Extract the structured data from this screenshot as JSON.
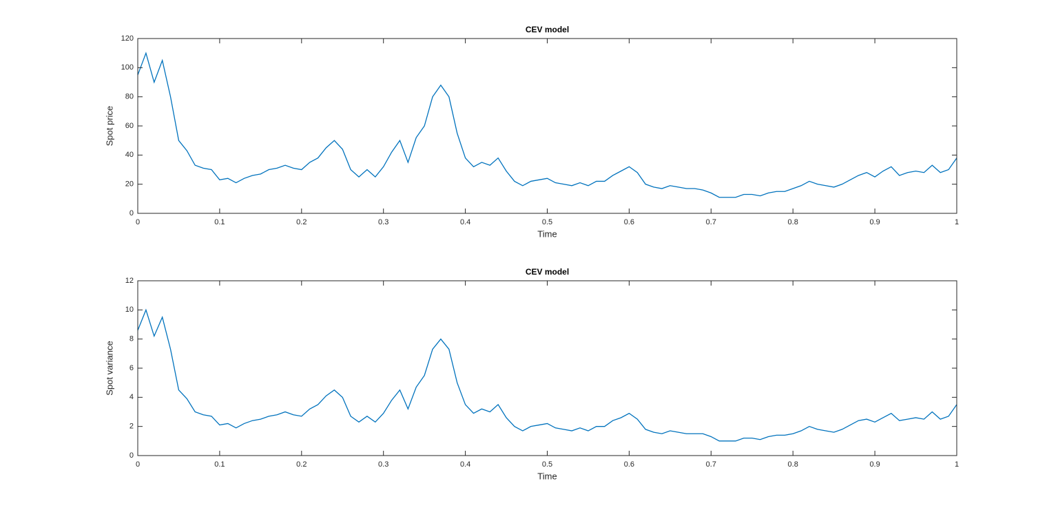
{
  "chart_data": [
    {
      "type": "line",
      "title": "CEV model",
      "xlabel": "Time",
      "ylabel": "Spot price",
      "color": "#0072bd",
      "x": [
        0,
        0.01,
        0.02,
        0.03,
        0.04,
        0.05,
        0.06,
        0.07,
        0.08,
        0.09,
        0.1,
        0.11,
        0.12,
        0.13,
        0.14,
        0.15,
        0.16,
        0.17,
        0.18,
        0.19,
        0.2,
        0.21,
        0.22,
        0.23,
        0.24,
        0.25,
        0.26,
        0.27,
        0.28,
        0.29,
        0.3,
        0.31,
        0.32,
        0.33,
        0.34,
        0.35,
        0.36,
        0.37,
        0.38,
        0.39,
        0.4,
        0.41,
        0.42,
        0.43,
        0.44,
        0.45,
        0.46,
        0.47,
        0.48,
        0.49,
        0.5,
        0.51,
        0.52,
        0.53,
        0.54,
        0.55,
        0.56,
        0.57,
        0.58,
        0.59,
        0.6,
        0.61,
        0.62,
        0.63,
        0.64,
        0.65,
        0.66,
        0.67,
        0.68,
        0.69,
        0.7,
        0.71,
        0.72,
        0.73,
        0.74,
        0.75,
        0.76,
        0.77,
        0.78,
        0.79,
        0.8,
        0.81,
        0.82,
        0.83,
        0.84,
        0.85,
        0.86,
        0.87,
        0.88,
        0.89,
        0.9,
        0.91,
        0.92,
        0.93,
        0.94,
        0.95,
        0.96,
        0.97,
        0.98,
        0.99,
        1
      ],
      "values": [
        95,
        110,
        90,
        105,
        80,
        50,
        43,
        33,
        31,
        30,
        23,
        24,
        21,
        24,
        26,
        27,
        30,
        31,
        33,
        31,
        30,
        35,
        38,
        45,
        50,
        44,
        30,
        25,
        30,
        25,
        32,
        42,
        50,
        35,
        52,
        60,
        80,
        88,
        80,
        55,
        38,
        32,
        35,
        33,
        38,
        29,
        22,
        19,
        22,
        23,
        24,
        21,
        20,
        19,
        21,
        19,
        22,
        22,
        26,
        29,
        32,
        28,
        20,
        18,
        17,
        19,
        18,
        17,
        17,
        16,
        14,
        11,
        11,
        11,
        13,
        13,
        12,
        14,
        15,
        15,
        17,
        19,
        22,
        20,
        19,
        18,
        20,
        23,
        26,
        28,
        25,
        29,
        32,
        26,
        28,
        29,
        28,
        33,
        28,
        30,
        38
      ],
      "xlim": [
        0,
        1
      ],
      "xticks": [
        0,
        0.1,
        0.2,
        0.3,
        0.4,
        0.5,
        0.6,
        0.7,
        0.8,
        0.9,
        1
      ],
      "ylim": [
        0,
        120
      ],
      "yticks": [
        0,
        20,
        40,
        60,
        80,
        100,
        120
      ]
    },
    {
      "type": "line",
      "title": "CEV model",
      "xlabel": "Time",
      "ylabel": "Spot variance",
      "color": "#0072bd",
      "x": [
        0,
        0.01,
        0.02,
        0.03,
        0.04,
        0.05,
        0.06,
        0.07,
        0.08,
        0.09,
        0.1,
        0.11,
        0.12,
        0.13,
        0.14,
        0.15,
        0.16,
        0.17,
        0.18,
        0.19,
        0.2,
        0.21,
        0.22,
        0.23,
        0.24,
        0.25,
        0.26,
        0.27,
        0.28,
        0.29,
        0.3,
        0.31,
        0.32,
        0.33,
        0.34,
        0.35,
        0.36,
        0.37,
        0.38,
        0.39,
        0.4,
        0.41,
        0.42,
        0.43,
        0.44,
        0.45,
        0.46,
        0.47,
        0.48,
        0.49,
        0.5,
        0.51,
        0.52,
        0.53,
        0.54,
        0.55,
        0.56,
        0.57,
        0.58,
        0.59,
        0.6,
        0.61,
        0.62,
        0.63,
        0.64,
        0.65,
        0.66,
        0.67,
        0.68,
        0.69,
        0.7,
        0.71,
        0.72,
        0.73,
        0.74,
        0.75,
        0.76,
        0.77,
        0.78,
        0.79,
        0.8,
        0.81,
        0.82,
        0.83,
        0.84,
        0.85,
        0.86,
        0.87,
        0.88,
        0.89,
        0.9,
        0.91,
        0.92,
        0.93,
        0.94,
        0.95,
        0.96,
        0.97,
        0.98,
        0.99,
        1
      ],
      "values": [
        8.6,
        10.0,
        8.2,
        9.5,
        7.3,
        4.5,
        3.9,
        3.0,
        2.8,
        2.7,
        2.1,
        2.2,
        1.9,
        2.2,
        2.4,
        2.5,
        2.7,
        2.8,
        3.0,
        2.8,
        2.7,
        3.2,
        3.5,
        4.1,
        4.5,
        4.0,
        2.7,
        2.3,
        2.7,
        2.3,
        2.9,
        3.8,
        4.5,
        3.2,
        4.7,
        5.5,
        7.3,
        8.0,
        7.3,
        5.0,
        3.5,
        2.9,
        3.2,
        3.0,
        3.5,
        2.6,
        2.0,
        1.7,
        2.0,
        2.1,
        2.2,
        1.9,
        1.8,
        1.7,
        1.9,
        1.7,
        2.0,
        2.0,
        2.4,
        2.6,
        2.9,
        2.5,
        1.8,
        1.6,
        1.5,
        1.7,
        1.6,
        1.5,
        1.5,
        1.5,
        1.3,
        1.0,
        1.0,
        1.0,
        1.2,
        1.2,
        1.1,
        1.3,
        1.4,
        1.4,
        1.5,
        1.7,
        2.0,
        1.8,
        1.7,
        1.6,
        1.8,
        2.1,
        2.4,
        2.5,
        2.3,
        2.6,
        2.9,
        2.4,
        2.5,
        2.6,
        2.5,
        3.0,
        2.5,
        2.7,
        3.5
      ],
      "xlim": [
        0,
        1
      ],
      "xticks": [
        0,
        0.1,
        0.2,
        0.3,
        0.4,
        0.5,
        0.6,
        0.7,
        0.8,
        0.9,
        1
      ],
      "ylim": [
        0,
        12
      ],
      "yticks": [
        0,
        2,
        4,
        6,
        8,
        10,
        12
      ]
    }
  ]
}
